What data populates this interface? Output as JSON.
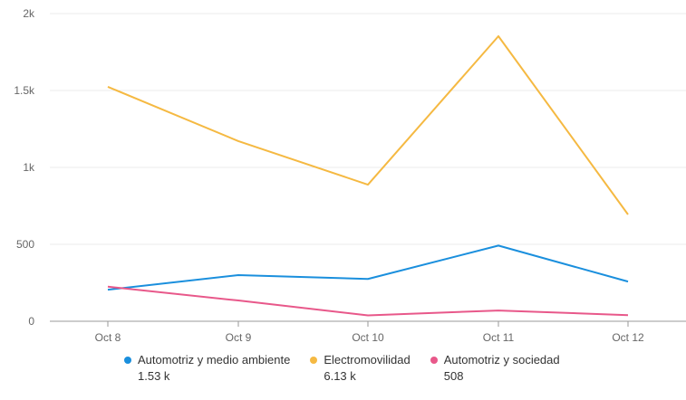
{
  "chart_data": {
    "type": "line",
    "title": "",
    "xlabel": "",
    "ylabel": "",
    "categories": [
      "Oct 8",
      "Oct 9",
      "Oct 10",
      "Oct 11",
      "Oct 12"
    ],
    "ylim": [
      0,
      2000
    ],
    "yticks": [
      0,
      500,
      1000,
      1500,
      2000
    ],
    "ytick_labels": [
      "0",
      "500",
      "1k",
      "1.5k",
      "2k"
    ],
    "grid": true,
    "legend_placement": "bottom",
    "series": [
      {
        "name": "Automotriz y medio ambiente",
        "total": "1.53 k",
        "color": "#1a8fdd",
        "values": [
          205,
          300,
          275,
          492,
          258
        ]
      },
      {
        "name": "Electromovilidad",
        "total": "6.13 k",
        "color": "#f5b942",
        "values": [
          1524,
          1171,
          888,
          1853,
          694
        ]
      },
      {
        "name": "Automotriz y sociedad",
        "total": "508",
        "color": "#e8588a",
        "values": [
          225,
          135,
          38,
          70,
          40
        ]
      }
    ]
  }
}
